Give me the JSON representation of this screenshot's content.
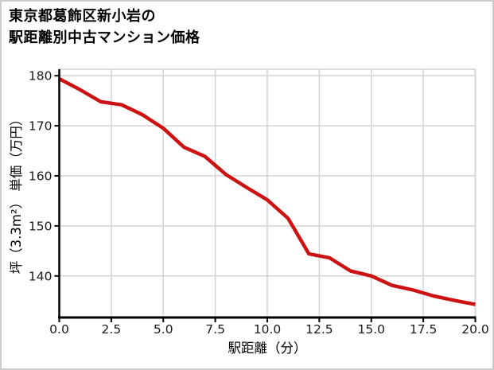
{
  "page": {
    "background": "#ffffff",
    "border_color": "#cbcbcb"
  },
  "title": {
    "line1": "東京都葛飾区新小岩の",
    "line2": "駅距離別中古マンション価格"
  },
  "chart_data": {
    "type": "line",
    "title": "東京都葛飾区新小岩の駅距離別中古マンション価格",
    "xlabel": "駅距離（分）",
    "ylabel": "坪（3.3m²） 単価（万円）",
    "x": [
      0,
      1,
      2,
      3,
      4,
      5,
      6,
      7,
      8,
      9,
      10,
      11,
      12,
      13,
      14,
      15,
      16,
      17,
      18,
      19,
      20
    ],
    "values": [
      179.4,
      177.2,
      174.8,
      174.2,
      172.2,
      169.5,
      165.7,
      163.9,
      160.3,
      157.7,
      155.2,
      151.5,
      144.4,
      143.6,
      141.0,
      140.0,
      138.1,
      137.2,
      136.0,
      135.1,
      134.3
    ],
    "xlim": [
      0,
      20
    ],
    "ylim": [
      131.7,
      181.3
    ],
    "x_tick_values": [
      0,
      2.5,
      5,
      7.5,
      10,
      12.5,
      15,
      17.5,
      20
    ],
    "x_tick_labels": [
      "0.0",
      "2.5",
      "5.0",
      "7.5",
      "10.0",
      "12.5",
      "15.0",
      "17.5",
      "20.0"
    ],
    "y_tick_values": [
      140,
      150,
      160,
      170,
      180
    ],
    "y_tick_labels": [
      "140",
      "150",
      "160",
      "170",
      "180"
    ],
    "grid": true,
    "legend": "none",
    "line_color": "#cc1212",
    "grid_color": "#d4d4d4",
    "spine_color": "#000000",
    "tick_color": "#000000",
    "tick_label_color": "#1a1a1a"
  }
}
